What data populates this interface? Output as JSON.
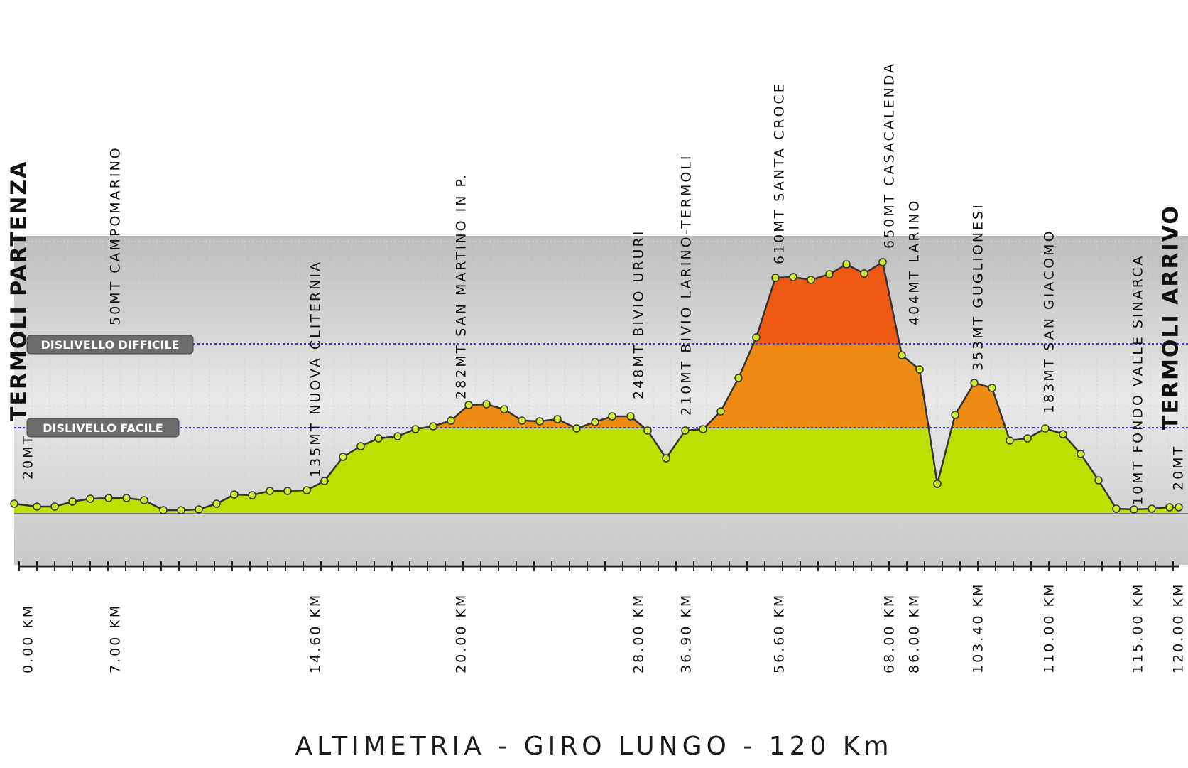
{
  "chart_data": {
    "type": "area",
    "title": "ALTIMETRIA - GIRO LUNGO - 120 Km",
    "colors": {
      "easy": "#bde000",
      "medium": "#ee8a12",
      "hard": "#ee5a14",
      "line": "#333333",
      "marker": "#cfe830",
      "band_line": "#3d3dd8"
    },
    "bands": [
      {
        "label": "DISLIVELLO DIFFICILE"
      },
      {
        "label": "DISLIVELLO FACILE"
      }
    ],
    "waypoints": [
      {
        "km_label": "0.00 KM",
        "label": "20MT",
        "name": "TERMOLI PARTENZA"
      },
      {
        "km_label": "7.00 KM",
        "label": "50MT CAMPOMARINO"
      },
      {
        "km_label": "14.60 KM",
        "label": "135MT NUOVA CLITERNIA"
      },
      {
        "km_label": "20.00 KM",
        "label": "282MT SAN MARTINO IN P."
      },
      {
        "km_label": "28.00 KM",
        "label": "248MT BIVIO URURI"
      },
      {
        "km_label": "36.90 KM",
        "label": "210MT BIVIO LARINO-TERMOLI"
      },
      {
        "km_label": "56.60 KM",
        "label": "610MT SANTA CROCE"
      },
      {
        "km_label": "68.00 KM",
        "label": "650MT CASACALENDA"
      },
      {
        "km_label": "86.00 KM",
        "label": "404MT LARINO"
      },
      {
        "km_label": "103.40 KM",
        "label": "353MT GUGLIONESI"
      },
      {
        "km_label": "110.00 KM",
        "label": "183MT SAN GIACOMO"
      },
      {
        "km_label": "115.00 KM",
        "label": "10MT FONDO VALLE SINARCA"
      },
      {
        "km_label": "120.00 KM",
        "label": "20MT",
        "name": "TERMOLI ARRIVO"
      }
    ]
  }
}
